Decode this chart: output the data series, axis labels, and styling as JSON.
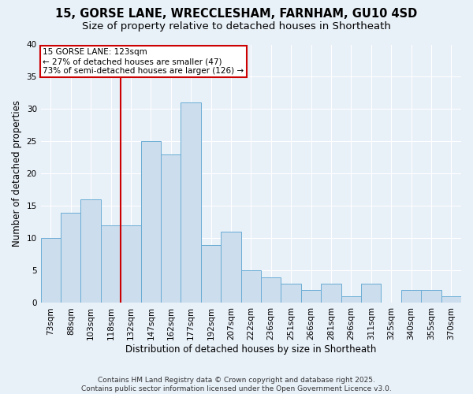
{
  "title": "15, GORSE LANE, WRECCLESHAM, FARNHAM, GU10 4SD",
  "subtitle": "Size of property relative to detached houses in Shortheath",
  "xlabel": "Distribution of detached houses by size in Shortheath",
  "ylabel": "Number of detached properties",
  "bar_labels": [
    "73sqm",
    "88sqm",
    "103sqm",
    "118sqm",
    "132sqm",
    "147sqm",
    "162sqm",
    "177sqm",
    "192sqm",
    "207sqm",
    "222sqm",
    "236sqm",
    "251sqm",
    "266sqm",
    "281sqm",
    "296sqm",
    "311sqm",
    "325sqm",
    "340sqm",
    "355sqm",
    "370sqm"
  ],
  "bar_values": [
    10,
    14,
    16,
    12,
    12,
    25,
    23,
    31,
    9,
    11,
    5,
    4,
    3,
    2,
    3,
    1,
    3,
    0,
    2,
    2,
    1
  ],
  "bar_color": "#ccdded",
  "bar_edge_color": "#6aadd5",
  "background_color": "#e8f0f8",
  "grid_color": "#ffffff",
  "property_line_x": 3.5,
  "annotation_line1": "15 GORSE LANE: 123sqm",
  "annotation_line2": "← 27% of detached houses are smaller (47)",
  "annotation_line3": "73% of semi-detached houses are larger (126) →",
  "annotation_box_color": "#ffffff",
  "annotation_box_edge_color": "#cc0000",
  "vline_color": "#cc0000",
  "ylim": [
    0,
    40
  ],
  "yticks": [
    0,
    5,
    10,
    15,
    20,
    25,
    30,
    35,
    40
  ],
  "footer_line1": "Contains HM Land Registry data © Crown copyright and database right 2025.",
  "footer_line2": "Contains public sector information licensed under the Open Government Licence v3.0.",
  "title_fontsize": 10.5,
  "subtitle_fontsize": 9.5,
  "xlabel_fontsize": 8.5,
  "ylabel_fontsize": 8.5,
  "tick_fontsize": 7.5,
  "annotation_fontsize": 7.5,
  "footer_fontsize": 6.5
}
